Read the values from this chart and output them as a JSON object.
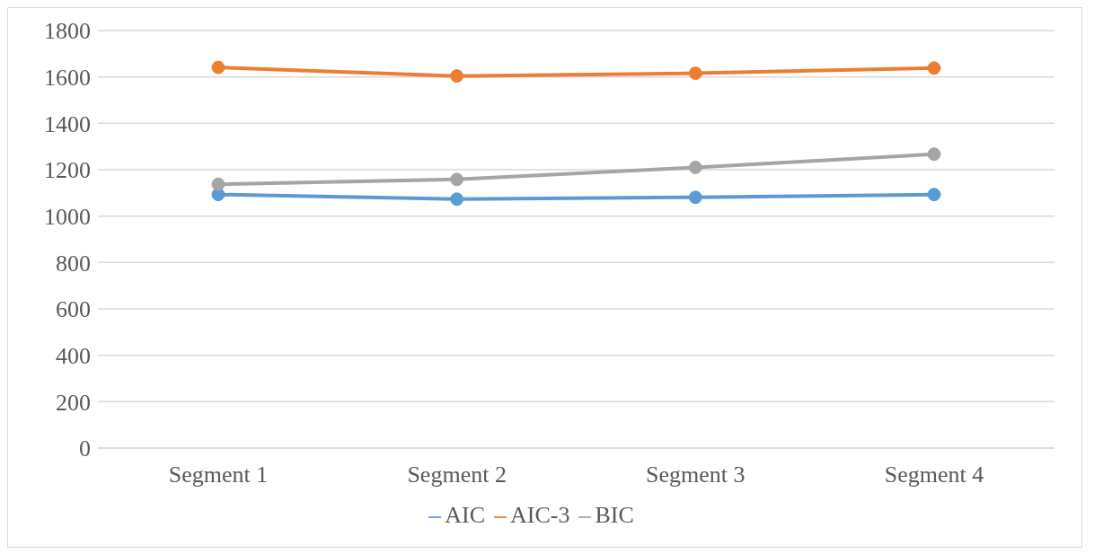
{
  "chart_data": {
    "type": "line",
    "categories": [
      "Segment 1",
      "Segment 2",
      "Segment 3",
      "Segment 4"
    ],
    "series": [
      {
        "name": "AIC",
        "color": "#5b9bd5",
        "values": [
          1093,
          1073,
          1081,
          1093
        ]
      },
      {
        "name": "AIC-3",
        "color": "#ed7d31",
        "values": [
          1641,
          1604,
          1616,
          1638
        ]
      },
      {
        "name": "BIC",
        "color": "#a5a5a5",
        "values": [
          1137,
          1158,
          1210,
          1267
        ]
      }
    ],
    "ylim": [
      0,
      1800
    ],
    "yticks": [
      0,
      200,
      400,
      600,
      800,
      1000,
      1200,
      1400,
      1600,
      1800
    ],
    "grid": "y",
    "legend": "bottom",
    "marker": "circle",
    "line_style": "solid"
  }
}
